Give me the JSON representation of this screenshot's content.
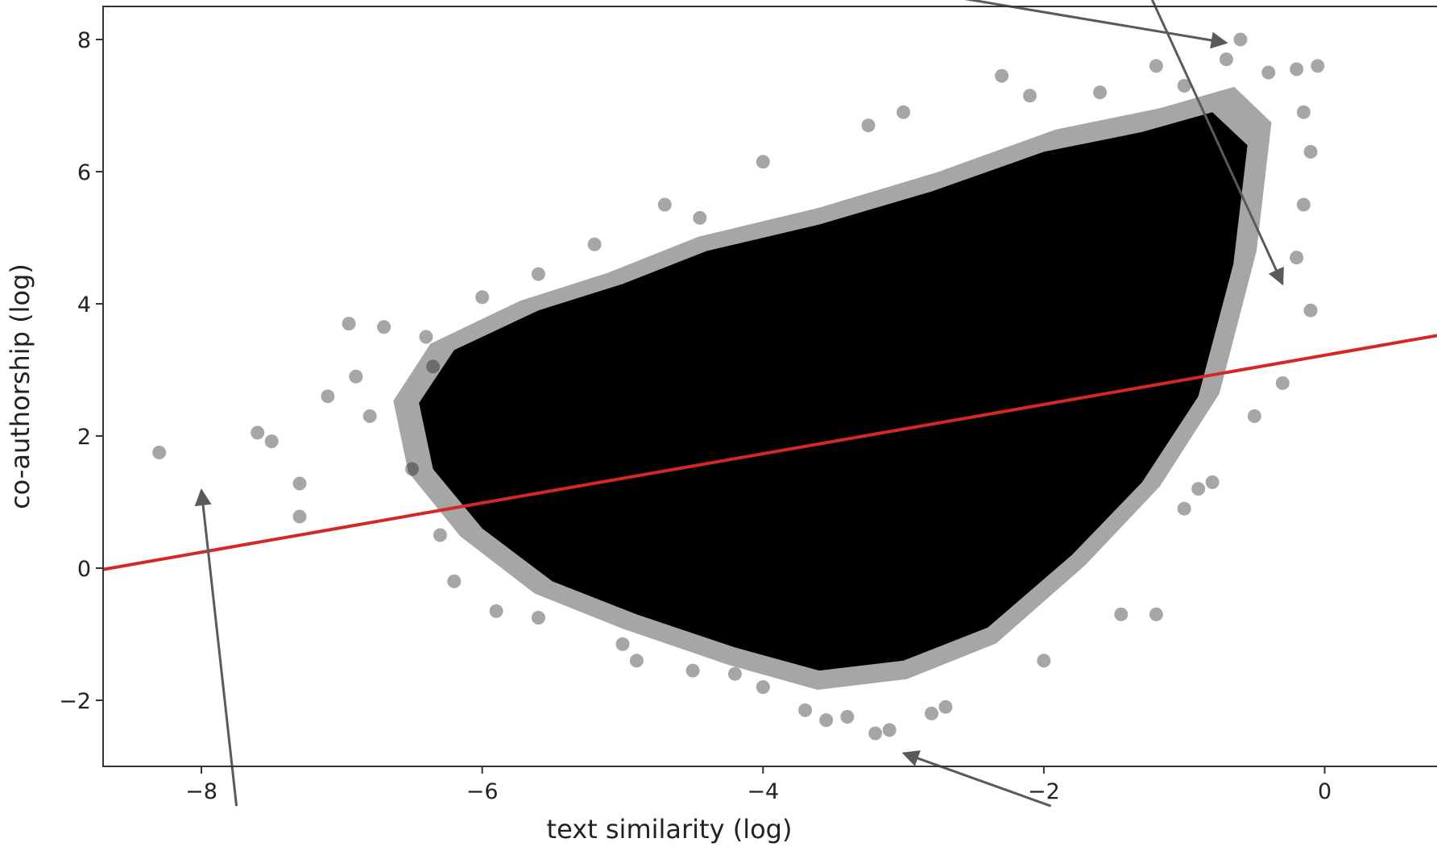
{
  "chart_data": {
    "type": "scatter",
    "title": "",
    "xlabel": "text similarity (log)",
    "ylabel": "co-authorship (log)",
    "xlim": [
      -8.7,
      0.8
    ],
    "ylim": [
      -3.0,
      8.5
    ],
    "x_ticks": [
      -8,
      -6,
      -4,
      -2,
      0
    ],
    "y_ticks": [
      -2,
      0,
      2,
      4,
      6,
      8
    ],
    "x_tick_labels": [
      "−8",
      "−6",
      "−4",
      "−2",
      "0"
    ],
    "y_tick_labels": [
      "−2",
      "0",
      "2",
      "4",
      "6",
      "8"
    ],
    "grid": false,
    "legend": "none",
    "point_color": "#000000",
    "point_alpha": 0.35,
    "fit_line_color": "#d62728",
    "annotation_arrow_color": "#5a5a5a",
    "dense_region": {
      "center": [
        -3.4,
        2.1
      ],
      "x_range": [
        -6.6,
        -0.5
      ],
      "y_range": [
        -2.5,
        7.9
      ]
    },
    "points": [
      {
        "x": -8.3,
        "y": 1.75
      },
      {
        "x": -7.6,
        "y": 2.05
      },
      {
        "x": -7.5,
        "y": 1.92
      },
      {
        "x": -7.3,
        "y": 1.28
      },
      {
        "x": -7.3,
        "y": 0.78
      },
      {
        "x": -7.1,
        "y": 2.6
      },
      {
        "x": -6.95,
        "y": 3.7
      },
      {
        "x": -6.7,
        "y": 3.65
      },
      {
        "x": -6.9,
        "y": 2.9
      },
      {
        "x": -6.8,
        "y": 2.3
      },
      {
        "x": -6.35,
        "y": 3.05
      },
      {
        "x": -6.5,
        "y": 1.5
      },
      {
        "x": -6.3,
        "y": 0.5
      },
      {
        "x": -6.2,
        "y": -0.2
      },
      {
        "x": -5.9,
        "y": -0.65
      },
      {
        "x": -5.6,
        "y": -0.75
      },
      {
        "x": -5.0,
        "y": -1.15
      },
      {
        "x": -4.9,
        "y": -1.4
      },
      {
        "x": -4.5,
        "y": -1.55
      },
      {
        "x": -4.2,
        "y": -1.6
      },
      {
        "x": -4.0,
        "y": -1.8
      },
      {
        "x": -3.7,
        "y": -2.15
      },
      {
        "x": -3.55,
        "y": -2.3
      },
      {
        "x": -3.4,
        "y": -2.25
      },
      {
        "x": -3.2,
        "y": -2.5
      },
      {
        "x": -3.1,
        "y": -2.45
      },
      {
        "x": -2.8,
        "y": -2.2
      },
      {
        "x": -2.7,
        "y": -2.1
      },
      {
        "x": -2.0,
        "y": -1.4
      },
      {
        "x": -1.45,
        "y": -0.7
      },
      {
        "x": -1.2,
        "y": -0.7
      },
      {
        "x": -1.0,
        "y": 0.9
      },
      {
        "x": -0.9,
        "y": 1.2
      },
      {
        "x": -0.8,
        "y": 1.3
      },
      {
        "x": -0.5,
        "y": 2.3
      },
      {
        "x": -0.3,
        "y": 2.8
      },
      {
        "x": -0.1,
        "y": 3.9
      },
      {
        "x": -0.2,
        "y": 4.7
      },
      {
        "x": -0.15,
        "y": 5.5
      },
      {
        "x": -0.1,
        "y": 6.3
      },
      {
        "x": -0.15,
        "y": 6.9
      },
      {
        "x": -0.05,
        "y": 7.6
      },
      {
        "x": -0.2,
        "y": 7.55
      },
      {
        "x": -0.4,
        "y": 7.5
      },
      {
        "x": -0.6,
        "y": 8.0
      },
      {
        "x": -0.7,
        "y": 7.7
      },
      {
        "x": -1.0,
        "y": 7.3
      },
      {
        "x": -1.2,
        "y": 7.6
      },
      {
        "x": -1.6,
        "y": 7.2
      },
      {
        "x": -2.1,
        "y": 7.15
      },
      {
        "x": -2.3,
        "y": 7.45
      },
      {
        "x": -3.0,
        "y": 6.9
      },
      {
        "x": -3.25,
        "y": 6.7
      },
      {
        "x": -4.0,
        "y": 6.15
      },
      {
        "x": -4.45,
        "y": 5.3
      },
      {
        "x": -4.7,
        "y": 5.5
      },
      {
        "x": -5.2,
        "y": 4.9
      },
      {
        "x": -5.6,
        "y": 4.45
      },
      {
        "x": -6.0,
        "y": 4.1
      },
      {
        "x": -6.4,
        "y": 3.5
      }
    ],
    "fit_line": {
      "x": [
        -8.7,
        0.8
      ],
      "y": [
        -0.02,
        3.52
      ]
    },
    "annotation_arrows": [
      {
        "from": [
          -2.8,
          8.7
        ],
        "to": [
          -0.7,
          7.95
        ]
      },
      {
        "from": [
          -1.25,
          8.7
        ],
        "to": [
          -0.3,
          4.3
        ]
      },
      {
        "from": [
          -7.75,
          -3.6
        ],
        "to": [
          -8.0,
          1.18
        ]
      },
      {
        "from": [
          -1.95,
          -3.6
        ],
        "to": [
          -3.0,
          -2.8
        ]
      }
    ]
  }
}
